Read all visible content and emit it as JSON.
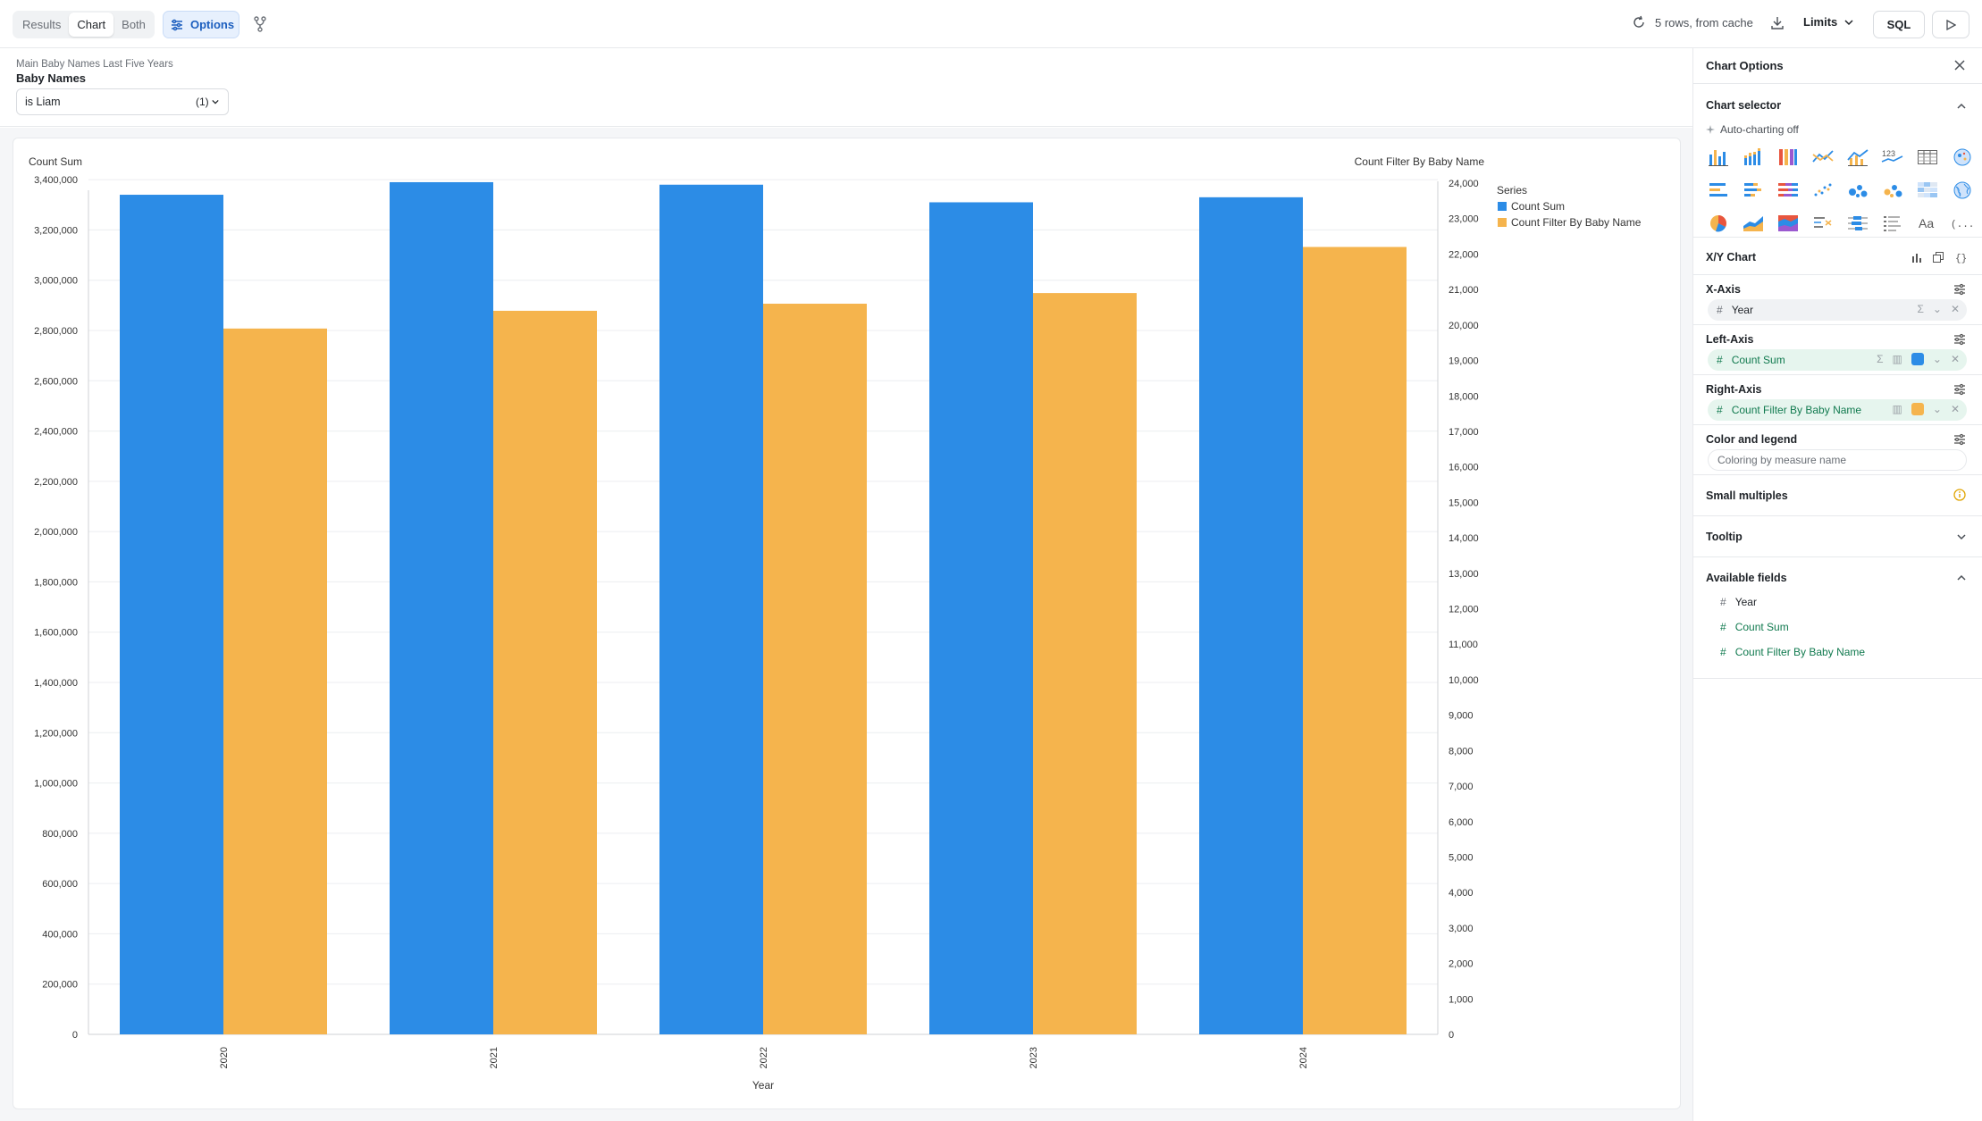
{
  "toolbar": {
    "tabs": [
      {
        "label": "Results",
        "active": false
      },
      {
        "label": "Chart",
        "active": true
      },
      {
        "label": "Both",
        "active": false
      }
    ],
    "options_label": "Options",
    "cache_label": "5 rows, from cache",
    "limits_label": "Limits",
    "sql_label": "SQL"
  },
  "filter": {
    "crumb": "Main Baby Names Last Five Years",
    "title": "Baby Names",
    "value": "is Liam",
    "count": "(1)"
  },
  "chart_data": {
    "type": "bar",
    "categories": [
      "2020",
      "2021",
      "2022",
      "2023",
      "2024"
    ],
    "xlabel": "Year",
    "series": [
      {
        "name": "Count Sum",
        "axis": "left",
        "color": "#2c8ce6",
        "values": [
          3340000,
          3390000,
          3380000,
          3310000,
          3330000
        ]
      },
      {
        "name": "Count Filter By Baby Name",
        "axis": "right",
        "color": "#f5b44d",
        "values": [
          19900,
          20400,
          20600,
          20900,
          22200
        ]
      }
    ],
    "left_axis": {
      "label": "Count Sum",
      "range": [
        0,
        3500000
      ],
      "ticks": [
        "0",
        "200,000",
        "400,000",
        "600,000",
        "800,000",
        "1,000,000",
        "1,200,000",
        "1,400,000",
        "1,600,000",
        "1,800,000",
        "2,000,000",
        "2,200,000",
        "2,400,000",
        "2,600,000",
        "2,800,000",
        "3,000,000",
        "3,200,000",
        "3,400,000"
      ]
    },
    "right_axis": {
      "label": "Count Filter By Baby Name",
      "range": [
        0,
        24000
      ],
      "ticks": [
        "0",
        "1,000",
        "2,000",
        "3,000",
        "4,000",
        "5,000",
        "6,000",
        "7,000",
        "8,000",
        "9,000",
        "10,000",
        "11,000",
        "12,000",
        "13,000",
        "14,000",
        "15,000",
        "16,000",
        "17,000",
        "18,000",
        "19,000",
        "20,000",
        "21,000",
        "22,000",
        "23,000",
        "24,000"
      ]
    },
    "legend": {
      "title": "Series",
      "placement": "right"
    },
    "grid": true
  },
  "panel": {
    "title": "Chart Options",
    "chart_selector": {
      "title": "Chart selector",
      "auto_label": "Auto-charting off"
    },
    "xy_chart": {
      "title": "X/Y Chart"
    },
    "x_axis": {
      "title": "X-Axis",
      "field": "Year"
    },
    "left_axis": {
      "title": "Left-Axis",
      "field": "Count Sum",
      "color": "#2c8ce6"
    },
    "right_axis": {
      "title": "Right-Axis",
      "field": "Count Filter By Baby Name",
      "color": "#f5b44d"
    },
    "color_legend": {
      "title": "Color and legend",
      "placeholder": "Coloring by measure name"
    },
    "small_multiples": {
      "title": "Small multiples"
    },
    "tooltip": {
      "title": "Tooltip"
    },
    "available_fields": {
      "title": "Available fields",
      "fields": [
        "Year",
        "Count Sum",
        "Count Filter By Baby Name"
      ]
    }
  }
}
